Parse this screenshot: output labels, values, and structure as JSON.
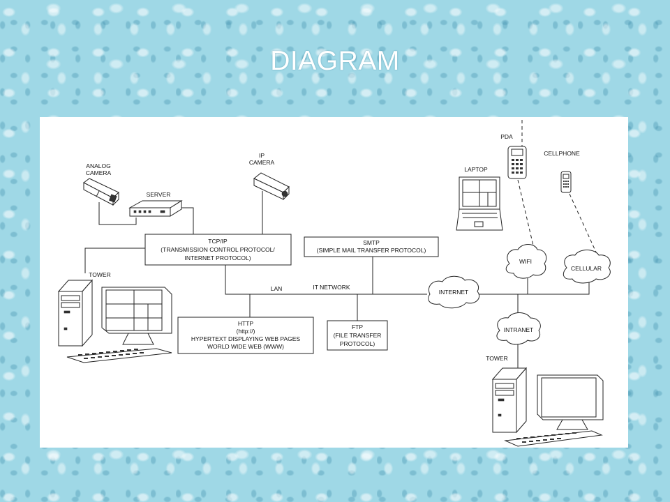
{
  "slide": {
    "title": "DIAGRAM"
  },
  "diagram": {
    "devices": {
      "analog_camera": [
        "ANALOG",
        "CAMERA"
      ],
      "server": "SERVER",
      "ip_camera": [
        "IP",
        "CAMERA"
      ],
      "pda": "PDA",
      "laptop": "LAPTOP",
      "cellphone": "CELLPHONE",
      "tower_left": "TOWER",
      "tower_right": "TOWER"
    },
    "clouds": {
      "wifi": "WIFI",
      "cellular": "CELLULAR",
      "internet": "INTERNET",
      "intranet": "INTRANET"
    },
    "boxes": {
      "tcpip": [
        "TCP/IP",
        "(TRANSMISSION CONTROL PROTOCOL/",
        "INTERNET PROTOCOL)"
      ],
      "smtp": [
        "SMTP",
        "(SIMPLE MAIL TRANSFER PROTOCOL)"
      ],
      "http": [
        "HTTP",
        "(http://)",
        "HYPERTEXT DISPLAYING WEB PAGES",
        "WORLD WIDE WEB (WWW)"
      ],
      "ftp": [
        "FTP",
        "(FILE TRANSFER",
        "PROTOCOL)"
      ]
    },
    "bus_labels": {
      "lan": "LAN",
      "it_network": "IT NETWORK"
    }
  }
}
